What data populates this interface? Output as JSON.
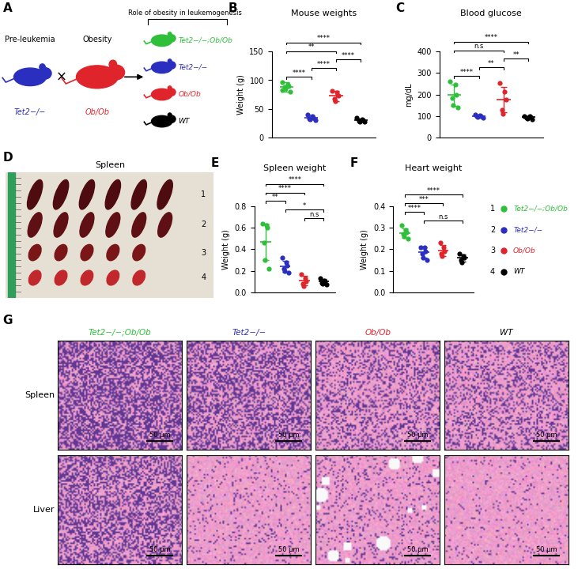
{
  "groups": [
    {
      "number": "1",
      "name": "Tet2−/−;Ob/Ob",
      "color": "#2fbf3a"
    },
    {
      "number": "2",
      "name": "Tet2−/−",
      "color": "#2b2fbf"
    },
    {
      "number": "3",
      "name": "Ob/Ob",
      "color": "#e0242c"
    },
    {
      "number": "4",
      "name": "WT",
      "color": "#000000"
    }
  ],
  "diagram": {
    "panel": "A",
    "title": "Role of obesity in leukemogenesis",
    "parents": [
      {
        "caption": "Pre-leukemia",
        "group": "2"
      },
      {
        "caption": "Obesity",
        "group": "3"
      }
    ],
    "cross": "×",
    "offspring": [
      "1",
      "2",
      "3",
      "4"
    ]
  },
  "chart_data": [
    {
      "type": "scatter",
      "panel": "B",
      "title": "Mouse weights",
      "y_label": "Weight (g)",
      "categories": [
        null,
        null,
        null,
        null
      ],
      "values": [
        [
          97,
          93,
          90,
          88,
          85,
          80,
          83
        ],
        [
          40,
          37,
          35,
          33,
          32,
          30
        ],
        [
          82,
          78,
          73,
          68,
          63
        ],
        [
          34,
          32,
          30,
          29,
          28,
          27
        ]
      ],
      "mean": [
        88,
        35,
        73,
        30
      ],
      "sd": [
        8,
        3,
        9,
        2.5
      ],
      "ylim": [
        0,
        150
      ],
      "yticks": [
        0,
        50,
        100,
        150
      ],
      "tick_labels": "y",
      "comparisons": [
        {
          "groups": [
            "1",
            "2"
          ],
          "label": "****"
        },
        {
          "groups": [
            "2",
            "3"
          ],
          "label": "****"
        },
        {
          "groups": [
            "3",
            "4"
          ],
          "label": "****"
        },
        {
          "groups": [
            "1",
            "3"
          ],
          "label": "**"
        },
        {
          "groups": [
            "1",
            "4"
          ],
          "label": "****"
        }
      ]
    },
    {
      "type": "scatter",
      "panel": "C",
      "title": "Blood glucose",
      "y_label": "mg/dL",
      "categories": [
        null,
        null,
        null,
        null
      ],
      "values": [
        [
          262,
          245,
          200,
          185,
          150,
          140
        ],
        [
          108,
          104,
          100,
          98,
          95,
          93
        ],
        [
          255,
          215,
          175,
          130,
          112
        ],
        [
          100,
          98,
          95,
          92,
          88,
          86
        ]
      ],
      "mean": [
        197,
        100,
        177,
        94
      ],
      "sd": [
        50,
        5,
        58,
        5
      ],
      "ylim": [
        0,
        400
      ],
      "yticks": [
        0,
        100,
        200,
        300,
        400
      ],
      "tick_labels": "y",
      "comparisons": [
        {
          "groups": [
            "1",
            "2"
          ],
          "label": "****"
        },
        {
          "groups": [
            "2",
            "3"
          ],
          "label": "**"
        },
        {
          "groups": [
            "3",
            "4"
          ],
          "label": "**"
        },
        {
          "groups": [
            "1",
            "3"
          ],
          "label": "n.s"
        },
        {
          "groups": [
            "1",
            "4"
          ],
          "label": "****"
        }
      ]
    },
    {
      "type": "scatter",
      "panel": "E",
      "title": "Spleen weight",
      "y_label": "Weight (g)",
      "categories": [
        null,
        null,
        null,
        null
      ],
      "values": [
        [
          0.64,
          0.62,
          0.6,
          0.46,
          0.3,
          0.22
        ],
        [
          0.32,
          0.28,
          0.25,
          0.22,
          0.2,
          0.18
        ],
        [
          0.17,
          0.13,
          0.1,
          0.08,
          0.06
        ],
        [
          0.13,
          0.11,
          0.1,
          0.09,
          0.08,
          0.07
        ]
      ],
      "mean": [
        0.47,
        0.24,
        0.11,
        0.1
      ],
      "sd": [
        0.17,
        0.05,
        0.045,
        0.025
      ],
      "ylim": [
        0.0,
        0.8
      ],
      "yticks": [
        0.0,
        0.2,
        0.4,
        0.6,
        0.8
      ],
      "tick_labels": "y",
      "comparisons": [
        {
          "groups": [
            "3",
            "4"
          ],
          "label": "n.s"
        },
        {
          "groups": [
            "2",
            "4"
          ],
          "label": "*"
        },
        {
          "groups": [
            "1",
            "2"
          ],
          "label": "**"
        },
        {
          "groups": [
            "1",
            "3"
          ],
          "label": "****"
        },
        {
          "groups": [
            "1",
            "4"
          ],
          "label": "****"
        }
      ]
    },
    {
      "type": "scatter",
      "panel": "F",
      "title": "Heart weight",
      "y_label": "Weight (g)",
      "categories": [
        null,
        null,
        null,
        null
      ],
      "values": [
        [
          0.31,
          0.29,
          0.28,
          0.27,
          0.26,
          0.25
        ],
        [
          0.21,
          0.21,
          0.19,
          0.18,
          0.16,
          0.15
        ],
        [
          0.23,
          0.21,
          0.19,
          0.18,
          0.17
        ],
        [
          0.18,
          0.17,
          0.16,
          0.15,
          0.14
        ]
      ],
      "mean": [
        0.275,
        0.185,
        0.195,
        0.16
      ],
      "sd": [
        0.022,
        0.025,
        0.025,
        0.017
      ],
      "ylim": [
        0.0,
        0.4
      ],
      "yticks": [
        0.0,
        0.1,
        0.2,
        0.3,
        0.4
      ],
      "tick_labels": "y",
      "comparisons": [
        {
          "groups": [
            "2",
            "4"
          ],
          "label": "n.s"
        },
        {
          "groups": [
            "1",
            "2"
          ],
          "label": "****"
        },
        {
          "groups": [
            "1",
            "3"
          ],
          "label": "***"
        },
        {
          "groups": [
            "1",
            "4"
          ],
          "label": "****"
        }
      ]
    }
  ],
  "spleen_photo": {
    "panel": "D",
    "title": "Spleen",
    "rows": [
      {
        "group": "1",
        "count": 6
      },
      {
        "group": "2",
        "count": 6
      },
      {
        "group": "3",
        "count": 5
      },
      {
        "group": "4",
        "count": 5
      }
    ]
  },
  "histology": {
    "panel": "G",
    "rows": [
      "Spleen",
      "Liver"
    ],
    "columns": [
      "1",
      "2",
      "3",
      "4"
    ],
    "scale_bar": "50 μm"
  }
}
